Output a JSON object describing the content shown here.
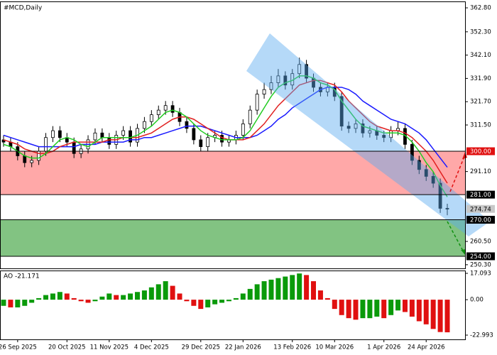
{
  "chart_data": [
    {
      "type": "candlestick",
      "title": "#MCD,Daily",
      "categories": [
        null,
        null,
        "26 Sep 2025",
        null,
        null,
        null,
        null,
        null,
        null,
        "20 Oct 2025",
        null,
        null,
        null,
        null,
        null,
        "11 Nov 2025",
        null,
        null,
        null,
        null,
        null,
        "4 Dec 2025",
        null,
        null,
        null,
        null,
        null,
        null,
        "29 Dec 2025",
        null,
        null,
        null,
        null,
        null,
        "22 Jan 2026",
        null,
        null,
        null,
        null,
        null,
        null,
        "13 Feb 2026",
        null,
        null,
        null,
        null,
        null,
        "10 Mar 2026",
        null,
        null,
        null,
        null,
        null,
        null,
        "1 Apr 2026",
        null,
        null,
        null,
        null,
        null,
        "24 Apr 2026",
        null,
        null,
        null
      ],
      "open": [
        305,
        304,
        302,
        298,
        295,
        296,
        300,
        306,
        309,
        306,
        304,
        299,
        301,
        305,
        308,
        306,
        303,
        307,
        309,
        304,
        310,
        313,
        316,
        318,
        320,
        317,
        313,
        310,
        305,
        302,
        306,
        307,
        304,
        305,
        307,
        312,
        318,
        325,
        327,
        330,
        333,
        329,
        334,
        338,
        332,
        328,
        326,
        328,
        324,
        311,
        310,
        312,
        308,
        309,
        307,
        306,
        309,
        310,
        303,
        296,
        292,
        289,
        286,
        275
      ],
      "high": [
        307,
        306,
        304,
        300,
        298,
        302,
        308,
        311,
        311,
        308,
        306,
        303,
        307,
        310,
        310,
        308,
        309,
        311,
        311,
        312,
        315,
        318,
        320,
        322,
        322,
        319,
        315,
        312,
        307,
        308,
        309,
        309,
        307,
        309,
        314,
        320,
        327,
        330,
        333,
        336,
        335,
        336,
        341,
        340,
        334,
        330,
        330,
        330,
        326,
        313,
        314,
        314,
        311,
        311,
        309,
        311,
        313,
        312,
        305,
        298,
        294,
        291,
        288,
        277
      ],
      "low": [
        302,
        300,
        296,
        293,
        293,
        294,
        298,
        304,
        304,
        302,
        297,
        297,
        299,
        303,
        304,
        301,
        301,
        305,
        302,
        302,
        308,
        311,
        314,
        316,
        315,
        311,
        308,
        303,
        300,
        300,
        304,
        302,
        302,
        303,
        305,
        310,
        316,
        323,
        325,
        328,
        327,
        327,
        332,
        330,
        326,
        324,
        324,
        322,
        309,
        308,
        308,
        306,
        306,
        305,
        304,
        304,
        307,
        301,
        294,
        290,
        287,
        284,
        273,
        272
      ],
      "close": [
        304,
        302,
        298,
        295,
        296,
        300,
        306,
        309,
        306,
        304,
        299,
        301,
        305,
        308,
        306,
        303,
        307,
        309,
        304,
        310,
        313,
        316,
        318,
        320,
        317,
        313,
        310,
        305,
        302,
        306,
        307,
        304,
        305,
        307,
        312,
        318,
        325,
        327,
        330,
        333,
        329,
        334,
        338,
        332,
        328,
        326,
        328,
        324,
        311,
        310,
        312,
        308,
        309,
        307,
        306,
        309,
        310,
        303,
        296,
        292,
        289,
        286,
        275,
        274.74
      ],
      "up_color": "#ffffff",
      "down_color": "#000000",
      "moving_averages": [
        {
          "color": "#1a1aff",
          "values": [
            307,
            306,
            305,
            304,
            303,
            302,
            302,
            302,
            302,
            302,
            302,
            303,
            303,
            303,
            304,
            304,
            304,
            304,
            305,
            305,
            306,
            306,
            307,
            308,
            309,
            310,
            311,
            311,
            311,
            310,
            309,
            308,
            307,
            306,
            306,
            306,
            307,
            309,
            311,
            314,
            316,
            319,
            321,
            323,
            325,
            327,
            328,
            328,
            328,
            327,
            325,
            322,
            320,
            318,
            316,
            314,
            313,
            312,
            310,
            308,
            305,
            301,
            297,
            293
          ]
        },
        {
          "color": "#e02020",
          "values": [
            305,
            304,
            303,
            301,
            300,
            299,
            299,
            300,
            302,
            303,
            304,
            304,
            304,
            304,
            304,
            305,
            305,
            306,
            306,
            306,
            307,
            308,
            310,
            312,
            314,
            315,
            315,
            314,
            312,
            310,
            308,
            306,
            305,
            305,
            305,
            306,
            309,
            312,
            316,
            320,
            323,
            326,
            329,
            330,
            331,
            331,
            330,
            329,
            326,
            322,
            319,
            316,
            313,
            311,
            310,
            309,
            309,
            308,
            306,
            303,
            300,
            296,
            291,
            286
          ]
        },
        {
          "color": "#22cc22",
          "values": [
            303,
            302,
            300,
            298,
            297,
            297,
            299,
            302,
            305,
            306,
            305,
            303,
            302,
            304,
            306,
            306,
            306,
            306,
            306,
            307,
            309,
            311,
            314,
            317,
            318,
            317,
            315,
            312,
            309,
            307,
            306,
            305,
            305,
            305,
            306,
            309,
            314,
            319,
            324,
            328,
            330,
            331,
            333,
            333,
            332,
            330,
            329,
            327,
            322,
            318,
            314,
            311,
            310,
            309,
            308,
            308,
            308,
            307,
            304,
            300,
            295,
            291,
            285,
            280
          ]
        }
      ],
      "zones": [
        {
          "from": 281,
          "to": 300,
          "color": "#ffa8a8"
        },
        {
          "from": 254,
          "to": 270,
          "color": "#82c382"
        }
      ],
      "levels": [
        {
          "value": 300,
          "label": "300.00",
          "color": "#e01010"
        },
        {
          "value": 281,
          "label": "281.00",
          "color": "#000000"
        },
        {
          "value": 270,
          "label": "270.00",
          "color": "#000000"
        },
        {
          "value": 254,
          "label": "254.00",
          "color": "#000000"
        }
      ],
      "last_price": 274.74,
      "ylim": [
        248.7,
        365.3
      ],
      "yticks": [
        {
          "value": 362.8,
          "label": "362.80"
        },
        {
          "value": 352.3,
          "label": "352.30"
        },
        {
          "value": 342.1,
          "label": "342.10"
        },
        {
          "value": 331.9,
          "label": "331.90"
        },
        {
          "value": 321.7,
          "label": "321.70"
        },
        {
          "value": 311.5,
          "label": "311.50"
        },
        {
          "value": 291.1,
          "label": "291.10"
        },
        {
          "value": 260.5,
          "label": "260.50"
        },
        {
          "value": 250.3,
          "label": "250.30"
        }
      ]
    },
    {
      "type": "bar",
      "title": "AO -21.171",
      "values": [
        -4,
        -5,
        -5,
        -4,
        -2,
        1,
        3,
        4,
        5,
        4,
        1,
        -1,
        -2,
        -1,
        2,
        4,
        3,
        3,
        4,
        5,
        6,
        8,
        10,
        12,
        9,
        4,
        -1,
        -4,
        -6,
        -5,
        -3,
        -2,
        -1,
        1,
        4,
        7,
        10,
        12,
        13,
        14,
        15,
        16,
        17,
        16,
        12,
        6,
        1,
        -6,
        -10,
        -12,
        -13,
        -12,
        -12,
        -11,
        -12,
        -10,
        -7,
        -8,
        -11,
        -14,
        -16,
        -19,
        -21,
        -21.171
      ],
      "up_color": "#0a9a0a",
      "down_color": "#e01010",
      "ylim": [
        -25.76,
        18.47
      ],
      "yticks": [
        17.093,
        {
          "value": 0,
          "label": "0.00"
        },
        -22.993
      ]
    }
  ]
}
